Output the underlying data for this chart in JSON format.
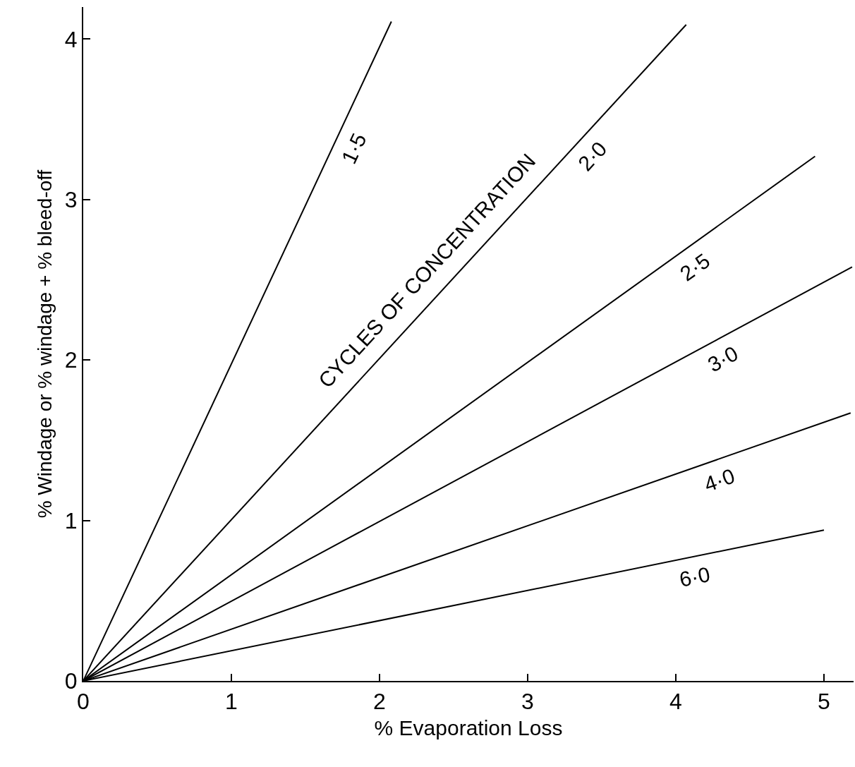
{
  "chart_data": {
    "type": "line",
    "xlabel": "% Evaporation Loss",
    "ylabel": "% Windage or % windage + % bleed-off",
    "series": [
      {
        "name": "1·5",
        "color": "#000000",
        "x": [
          0,
          2.08
        ],
        "values": [
          0,
          4.11
        ]
      },
      {
        "name": "2·0",
        "color": "#000000",
        "x": [
          0,
          4.07
        ],
        "values": [
          0,
          4.09
        ]
      },
      {
        "name": "2·5",
        "color": "#000000",
        "x": [
          0,
          4.94
        ],
        "values": [
          0,
          3.27
        ]
      },
      {
        "name": "3·0",
        "color": "#000000",
        "x": [
          0,
          5.19
        ],
        "values": [
          0,
          2.58
        ]
      },
      {
        "name": "4·0",
        "color": "#000000",
        "x": [
          0,
          5.18
        ],
        "values": [
          0,
          1.67
        ]
      },
      {
        "name": "6·0",
        "color": "#000000",
        "x": [
          0,
          5.0
        ],
        "values": [
          0,
          0.94
        ]
      }
    ],
    "annotations": [
      "CYCLES OF CONCENTRATION"
    ],
    "xlim": [
      0,
      5.2
    ],
    "ylim": [
      0,
      4.2
    ],
    "xticks": [
      0,
      1,
      2,
      3,
      4,
      5
    ],
    "yticks": [
      0,
      1,
      2,
      3,
      4
    ],
    "grid": false,
    "legend": false,
    "marker": "none",
    "line_style": "solid"
  }
}
